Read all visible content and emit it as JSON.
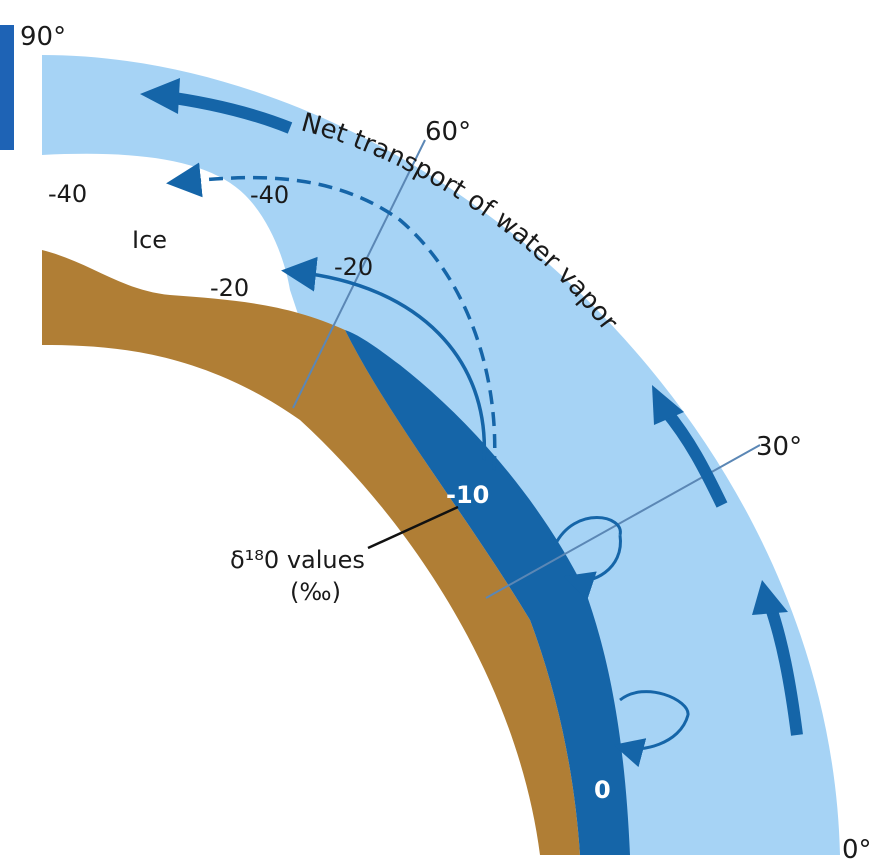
{
  "latitudes": {
    "lat90": "90°",
    "lat60": "60°",
    "lat30": "30°",
    "lat0": "0°"
  },
  "surface": {
    "ice_label": "Ice"
  },
  "transport_label": "Net transport of water vapor",
  "delta_values": {
    "v_ice_left_40": "-40",
    "v_dashed_40": "-40",
    "v_ice_20": "-20",
    "v_solid_20": "-20",
    "v_minus10": "-10",
    "v_zero": "0"
  },
  "legend": {
    "line1": "δ¹⁸0 values",
    "line2": "(‰)"
  },
  "colors": {
    "atmosphere": "#a6d3f5",
    "ocean": "#1565a8",
    "land": "#b07e35",
    "arrow": "#1565a8",
    "ice": "#ffffff"
  }
}
